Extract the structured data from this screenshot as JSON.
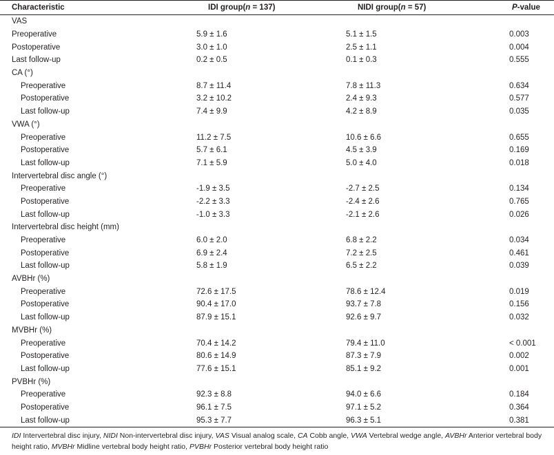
{
  "table": {
    "headers": {
      "characteristic": "Characteristic",
      "idi_prefix": "IDI group(",
      "idi_n": "n",
      "idi_suffix": " = 137)",
      "nidi_prefix": "NIDI group(",
      "nidi_n": "n",
      "nidi_suffix": " = 57)",
      "p_value_letter": "P",
      "p_value_suffix": "-value"
    },
    "rows": [
      {
        "type": "group",
        "label": "VAS"
      },
      {
        "type": "item",
        "indent": 0,
        "label": "Preoperative",
        "idi": "5.9 ± 1.6",
        "nidi": "5.1 ± 1.5",
        "p": "0.003"
      },
      {
        "type": "item",
        "indent": 0,
        "label": "Postoperative",
        "idi": "3.0 ± 1.0",
        "nidi": "2.5 ± 1.1",
        "p": "0.004"
      },
      {
        "type": "item",
        "indent": 0,
        "label": "Last follow-up",
        "idi": "0.2 ± 0.5",
        "nidi": "0.1 ± 0.3",
        "p": "0.555"
      },
      {
        "type": "group",
        "label": "CA (°)"
      },
      {
        "type": "item",
        "indent": 1,
        "label": "Preoperative",
        "idi": "8.7 ± 11.4",
        "nidi": "7.8 ± 11.3",
        "p": "0.634"
      },
      {
        "type": "item",
        "indent": 1,
        "label": "Postoperative",
        "idi": "3.2 ± 10.2",
        "nidi": "2.4 ± 9.3",
        "p": "0.577"
      },
      {
        "type": "item",
        "indent": 1,
        "label": "Last follow-up",
        "idi": "7.4 ± 9.9",
        "nidi": "4.2 ± 8.9",
        "p": "0.035"
      },
      {
        "type": "group",
        "label": "VWA (°)"
      },
      {
        "type": "item",
        "indent": 1,
        "label": "Preoperative",
        "idi": "11.2 ± 7.5",
        "nidi": "10.6 ± 6.6",
        "p": "0.655"
      },
      {
        "type": "item",
        "indent": 1,
        "label": "Postoperative",
        "idi": "5.7 ± 6.1",
        "nidi": "4.5 ± 3.9",
        "p": "0.169"
      },
      {
        "type": "item",
        "indent": 1,
        "label": "Last follow-up",
        "idi": "7.1 ± 5.9",
        "nidi": "5.0 ± 4.0",
        "p": "0.018"
      },
      {
        "type": "group",
        "label": "Intervertebral disc angle (°)"
      },
      {
        "type": "item",
        "indent": 1,
        "label": "Preoperative",
        "idi": "-1.9 ± 3.5",
        "nidi": "-2.7 ± 2.5",
        "p": "0.134"
      },
      {
        "type": "item",
        "indent": 1,
        "label": "Postoperative",
        "idi": "-2.2 ± 3.3",
        "nidi": "-2.4 ± 2.6",
        "p": "0.765"
      },
      {
        "type": "item",
        "indent": 1,
        "label": "Last follow-up",
        "idi": "-1.0 ± 3.3",
        "nidi": "-2.1 ± 2.6",
        "p": "0.026"
      },
      {
        "type": "group",
        "label": "Intervertebral disc height (mm)"
      },
      {
        "type": "item",
        "indent": 1,
        "label": "Preoperative",
        "idi": "6.0 ± 2.0",
        "nidi": "6.8 ± 2.2",
        "p": "0.034"
      },
      {
        "type": "item",
        "indent": 1,
        "label": "Postoperative",
        "idi": "6.9 ± 2.4",
        "nidi": "7.2 ± 2.5",
        "p": "0.461"
      },
      {
        "type": "item",
        "indent": 1,
        "label": "Last follow-up",
        "idi": "5.8 ± 1.9",
        "nidi": "6.5 ± 2.2",
        "p": "0.039"
      },
      {
        "type": "group",
        "label": "AVBHr (%)"
      },
      {
        "type": "item",
        "indent": 1,
        "label": "Preoperative",
        "idi": "72.6 ± 17.5",
        "nidi": "78.6 ± 12.4",
        "p": "0.019"
      },
      {
        "type": "item",
        "indent": 1,
        "label": "Postoperative",
        "idi": "90.4 ± 17.0",
        "nidi": "93.7 ± 7.8",
        "p": "0.156"
      },
      {
        "type": "item",
        "indent": 1,
        "label": "Last follow-up",
        "idi": "87.9 ± 15.1",
        "nidi": "92.6 ± 9.7",
        "p": "0.032"
      },
      {
        "type": "group",
        "label": "MVBHr (%)"
      },
      {
        "type": "item",
        "indent": 1,
        "label": "Preoperative",
        "idi": "70.4 ± 14.2",
        "nidi": "79.4 ± 11.0",
        "p": "< 0.001"
      },
      {
        "type": "item",
        "indent": 1,
        "label": "Postoperative",
        "idi": "80.6 ± 14.9",
        "nidi": "87.3 ± 7.9",
        "p": "0.002"
      },
      {
        "type": "item",
        "indent": 1,
        "label": "Last follow-up",
        "idi": "77.6 ± 15.1",
        "nidi": "85.1 ± 9.2",
        "p": "0.001"
      },
      {
        "type": "group",
        "label": "PVBHr (%)"
      },
      {
        "type": "item",
        "indent": 1,
        "label": "Preoperative",
        "idi": "92.3 ± 8.8",
        "nidi": "94.0 ± 6.6",
        "p": "0.184"
      },
      {
        "type": "item",
        "indent": 1,
        "label": "Postoperative",
        "idi": "96.1 ± 7.5",
        "nidi": "97.1 ± 5.2",
        "p": "0.364"
      },
      {
        "type": "item",
        "indent": 1,
        "label": "Last follow-up",
        "idi": "95.3 ± 7.7",
        "nidi": "96.3 ± 5.1",
        "p": "0.381"
      }
    ]
  },
  "footnote": [
    {
      "abbr": "IDI",
      "def": " Intervertebral disc injury, "
    },
    {
      "abbr": "NIDI",
      "def": " Non-intervertebral disc injury, "
    },
    {
      "abbr": "VAS",
      "def": " Visual analog scale, "
    },
    {
      "abbr": "CA",
      "def": " Cobb angle, "
    },
    {
      "abbr": "VWA",
      "def": " Vertebral wedge angle, "
    },
    {
      "abbr": "AVBHr",
      "def": " Anterior vertebral body height ratio, "
    },
    {
      "abbr": "MVBHr",
      "def": " Midline vertebral body height ratio, "
    },
    {
      "abbr": "PVBHr",
      "def": " Posterior vertebral body height ratio"
    }
  ]
}
